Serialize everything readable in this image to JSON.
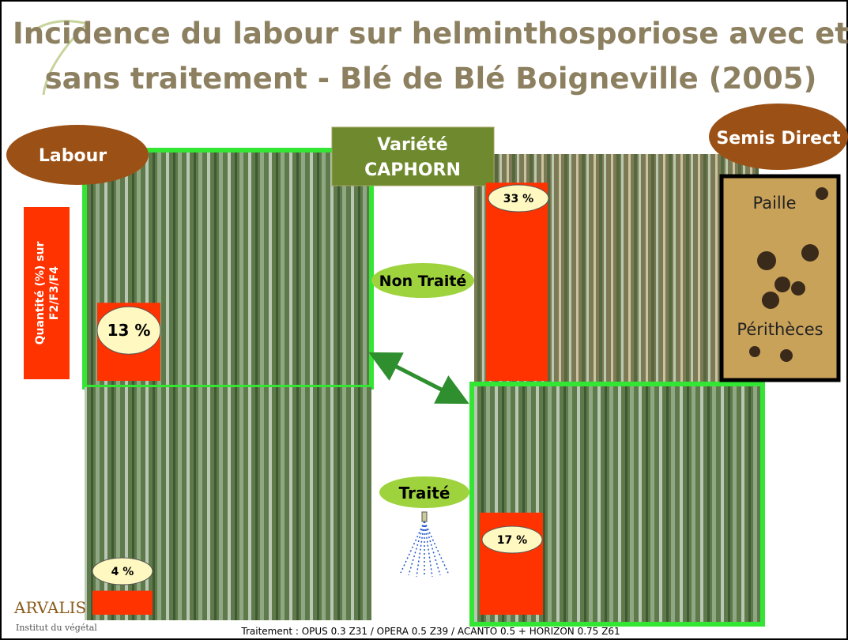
{
  "title": "Incidence du labour sur helminthosporiose avec et sans traitement - Blé de Blé Boigneville (2005)",
  "labels": {
    "labour": "Labour",
    "variete": [
      "Variété",
      "CAPHORN"
    ],
    "semis_direct": "Semis Direct",
    "non_traite": "Non Traité",
    "traite": "Traité",
    "quantite": [
      "Quantité (%) sur",
      "F2/F3/F4"
    ],
    "paille": "Paille",
    "peritheces": "Périthèces"
  },
  "panels": [
    {
      "value": 13,
      "label": "13 %"
    },
    {
      "value": 33,
      "label": "33 %"
    },
    {
      "value": 4,
      "label": "4 %"
    },
    {
      "value": 17,
      "label": "17 %"
    }
  ],
  "logo": {
    "name": "ARVALIS",
    "subtitle": "Institut du végétal"
  },
  "footer": "Traitement : OPUS 0.3 Z31 / OPERA 0.5 Z39 / ACANTO 0.5 + HORIZON 0.75 Z61"
}
